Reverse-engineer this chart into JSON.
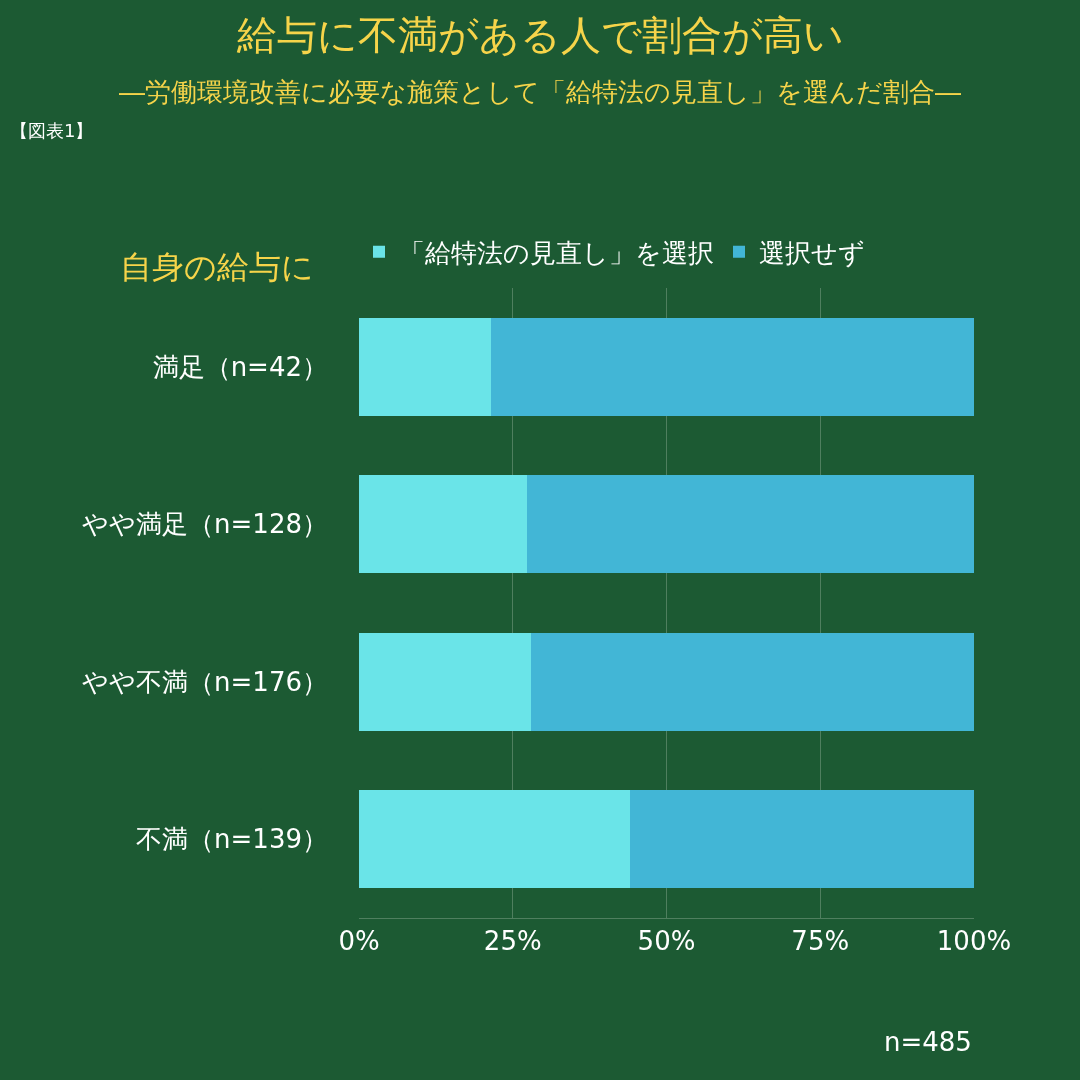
{
  "chart_data": {
    "type": "bar",
    "orientation": "horizontal",
    "stacked": true,
    "title": "給与に不満がある人で割合が高い",
    "subtitle": "―労働環境改善に必要な施策として「給特法の見直し」を選んだ割合―",
    "ylabel": "自身の給与に",
    "categories": [
      "満足（n=42）",
      "やや満足（n=128）",
      "やや不満（n=176）",
      "不満（n=139）"
    ],
    "series": [
      {
        "name": "「給特法の見直し」を選択",
        "color": "#6ae4e8",
        "values": [
          21.4,
          27.3,
          27.9,
          44.0
        ]
      },
      {
        "name": "選択せず",
        "color": "#42b6d6",
        "values": [
          78.6,
          72.7,
          72.1,
          56.0
        ]
      }
    ],
    "xlim": [
      0,
      100
    ],
    "xticks": [
      {
        "value": 0,
        "label": "0%"
      },
      {
        "value": 25,
        "label": "25%"
      },
      {
        "value": 50,
        "label": "50%"
      },
      {
        "value": 75,
        "label": "75%"
      },
      {
        "value": 100,
        "label": "100%"
      }
    ],
    "grid": "x",
    "legend": "top",
    "annotations": [
      "【図表1】",
      "n=485"
    ]
  }
}
